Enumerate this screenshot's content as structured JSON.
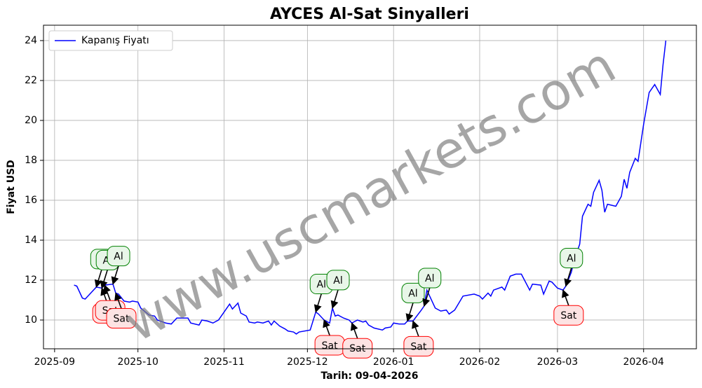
{
  "chart_data": {
    "type": "line",
    "title": "AYCES Al-Sat Sinyalleri",
    "xlabel": "Tarih: 09-04-2026",
    "ylabel": "Fiyat USD",
    "watermark": "www.uscmarkets.com",
    "legend": "upper left",
    "grid": true,
    "xlim": [
      "2025-08-28",
      "2026-04-20"
    ],
    "ylim": [
      8.56,
      24.77
    ],
    "yticks": [
      10,
      12,
      14,
      16,
      18,
      20,
      22,
      24
    ],
    "xticks": [
      {
        "value": "2025-09-01",
        "label": "2025-09"
      },
      {
        "value": "2025-10-01",
        "label": "2025-10"
      },
      {
        "value": "2025-11-01",
        "label": "2025-11"
      },
      {
        "value": "2025-12-01",
        "label": "2025-12"
      },
      {
        "value": "2026-01-01",
        "label": "2026-01"
      },
      {
        "value": "2026-02-01",
        "label": "2026-02"
      },
      {
        "value": "2026-03-01",
        "label": "2026-03"
      },
      {
        "value": "2026-04-01",
        "label": "2026-04"
      }
    ],
    "x": [
      "2025-09-08",
      "2025-09-09",
      "2025-09-11",
      "2025-09-12",
      "2025-09-14",
      "2025-09-16",
      "2025-09-18",
      "2025-09-19",
      "2025-09-22",
      "2025-09-23",
      "2025-09-24",
      "2025-09-26",
      "2025-09-28",
      "2025-09-29",
      "2025-10-01",
      "2025-10-02",
      "2025-10-05",
      "2025-10-07",
      "2025-10-08",
      "2025-10-11",
      "2025-10-13",
      "2025-10-15",
      "2025-10-17",
      "2025-10-19",
      "2025-10-20",
      "2025-10-23",
      "2025-10-24",
      "2025-10-26",
      "2025-10-28",
      "2025-10-30",
      "2025-11-01",
      "2025-11-03",
      "2025-11-04",
      "2025-11-06",
      "2025-11-07",
      "2025-11-09",
      "2025-11-10",
      "2025-11-12",
      "2025-11-13",
      "2025-11-15",
      "2025-11-17",
      "2025-11-18",
      "2025-11-19",
      "2025-11-21",
      "2025-11-23",
      "2025-11-24",
      "2025-11-26",
      "2025-11-27",
      "2025-11-28",
      "2025-12-02",
      "2025-12-04",
      "2025-12-05",
      "2025-12-07",
      "2025-12-09",
      "2025-12-10",
      "2025-12-11",
      "2025-12-12",
      "2025-12-14",
      "2025-12-16",
      "2025-12-17",
      "2025-12-19",
      "2025-12-21",
      "2025-12-22",
      "2025-12-23",
      "2025-12-25",
      "2025-12-28",
      "2025-12-29",
      "2025-12-31",
      "2026-01-01",
      "2026-01-03",
      "2026-01-05",
      "2026-01-06",
      "2026-01-08",
      "2026-01-11",
      "2026-01-12",
      "2026-01-13",
      "2026-01-15",
      "2026-01-16",
      "2026-01-18",
      "2026-01-20",
      "2026-01-21",
      "2026-01-23",
      "2026-01-26",
      "2026-01-30",
      "2026-02-01",
      "2026-02-02",
      "2026-02-04",
      "2026-02-05",
      "2026-02-06",
      "2026-02-09",
      "2026-02-10",
      "2026-02-12",
      "2026-02-14",
      "2026-02-16",
      "2026-02-19",
      "2026-02-20",
      "2026-02-23",
      "2026-02-24",
      "2026-02-26",
      "2026-02-27",
      "2026-03-01",
      "2026-03-03",
      "2026-03-04",
      "2026-03-06",
      "2026-03-07",
      "2026-03-09",
      "2026-03-10",
      "2026-03-12",
      "2026-03-13",
      "2026-03-14",
      "2026-03-16",
      "2026-03-17",
      "2026-03-18",
      "2026-03-19",
      "2026-03-22",
      "2026-03-24",
      "2026-03-25",
      "2026-03-26",
      "2026-03-27",
      "2026-03-29",
      "2026-03-30",
      "2026-04-01",
      "2026-04-03",
      "2026-04-05",
      "2026-04-07",
      "2026-04-08",
      "2026-04-09"
    ],
    "series": [
      {
        "name": "Kapanış Fiyatı",
        "color": "#0000ff",
        "values": [
          11.75,
          11.7,
          11.1,
          11.05,
          11.35,
          11.65,
          11.6,
          11.75,
          11.8,
          11.35,
          11.3,
          10.95,
          10.9,
          10.95,
          10.9,
          10.6,
          10.25,
          10.2,
          10.0,
          9.85,
          9.8,
          10.1,
          10.1,
          10.1,
          9.85,
          9.75,
          10.0,
          9.95,
          9.85,
          10.0,
          10.4,
          10.8,
          10.55,
          10.85,
          10.35,
          10.2,
          9.9,
          9.85,
          9.9,
          9.85,
          9.95,
          9.75,
          9.95,
          9.7,
          9.55,
          9.45,
          9.4,
          9.3,
          9.4,
          9.5,
          10.4,
          10.3,
          10.0,
          9.85,
          10.6,
          10.2,
          10.25,
          10.1,
          10.0,
          9.85,
          10.0,
          9.9,
          9.95,
          9.75,
          9.6,
          9.5,
          9.6,
          9.65,
          9.85,
          9.8,
          9.8,
          9.95,
          9.95,
          10.5,
          10.7,
          11.5,
          10.9,
          10.6,
          10.45,
          10.5,
          10.3,
          10.5,
          11.2,
          11.3,
          11.2,
          11.05,
          11.35,
          11.2,
          11.5,
          11.65,
          11.5,
          12.2,
          12.3,
          12.3,
          11.5,
          11.8,
          11.75,
          11.3,
          11.95,
          11.9,
          11.6,
          11.5,
          11.7,
          12.4,
          13.0,
          13.8,
          15.2,
          15.8,
          15.7,
          16.4,
          17.0,
          16.5,
          15.4,
          15.8,
          15.7,
          16.2,
          17.05,
          16.6,
          17.4,
          18.1,
          17.95,
          19.8,
          21.4,
          21.8,
          21.3,
          22.8,
          24.0
        ]
      }
    ],
    "annotations": [
      {
        "text": "Al",
        "x": "2025-09-16",
        "y": 11.65
      },
      {
        "text": "Al",
        "x": "2025-09-18",
        "y": 11.6
      },
      {
        "text": "Al",
        "x": "2025-09-22",
        "y": 11.8
      },
      {
        "text": "Sat",
        "x": "2025-09-18",
        "y": 11.6
      },
      {
        "text": "Sat",
        "x": "2025-09-19",
        "y": 11.75
      },
      {
        "text": "Sat",
        "x": "2025-09-23",
        "y": 11.35
      },
      {
        "text": "Al",
        "x": "2025-12-04",
        "y": 10.4
      },
      {
        "text": "Al",
        "x": "2025-12-10",
        "y": 10.6
      },
      {
        "text": "Sat",
        "x": "2025-12-07",
        "y": 10.0
      },
      {
        "text": "Sat",
        "x": "2025-12-17",
        "y": 9.85
      },
      {
        "text": "Al",
        "x": "2026-01-06",
        "y": 9.95
      },
      {
        "text": "Al",
        "x": "2026-01-12",
        "y": 10.7
      },
      {
        "text": "Sat",
        "x": "2026-01-08",
        "y": 9.95
      },
      {
        "text": "Al",
        "x": "2026-03-04",
        "y": 11.7
      },
      {
        "text": "Sat",
        "x": "2026-03-03",
        "y": 11.5
      }
    ]
  }
}
